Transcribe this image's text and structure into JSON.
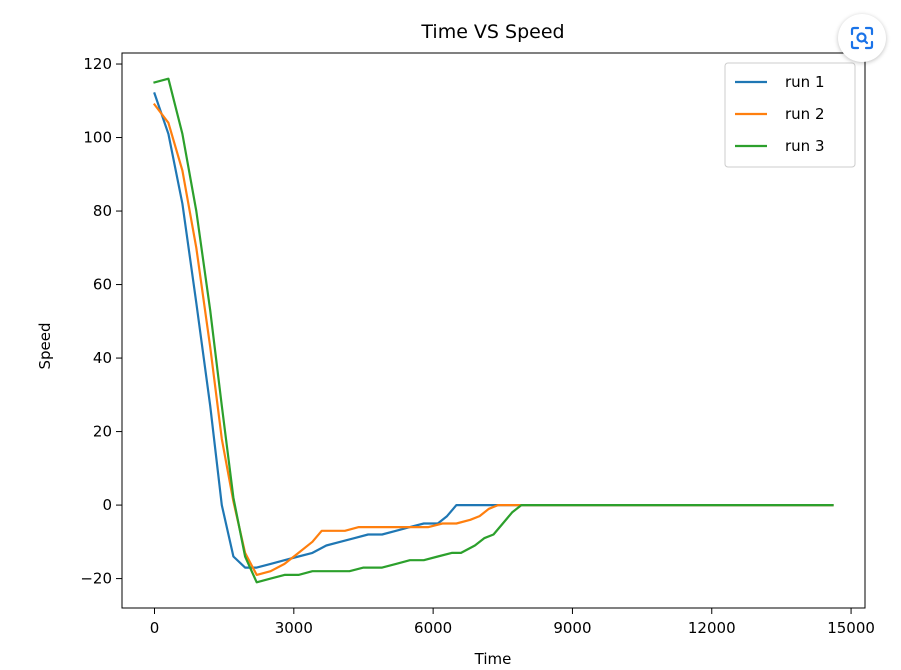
{
  "overlay": {
    "lens_icon": "visual-search-icon"
  },
  "chart_data": {
    "type": "line",
    "title": "Time VS Speed",
    "xlabel": "Time",
    "ylabel": "Speed",
    "xlim": [
      -700,
      15300
    ],
    "ylim": [
      -28,
      123
    ],
    "xticks": [
      0,
      3000,
      6000,
      9000,
      12000,
      15000
    ],
    "xtick_labels": [
      "0",
      "3000",
      "6000",
      "9000",
      "12000",
      "15000"
    ],
    "yticks": [
      -20,
      0,
      20,
      40,
      60,
      80,
      100,
      120
    ],
    "ytick_labels": [
      "−20",
      "0",
      "20",
      "40",
      "60",
      "80",
      "100",
      "120"
    ],
    "grid": false,
    "legend_position": "top-right",
    "series": [
      {
        "name": "run 1",
        "color": "#1f77b4",
        "points": [
          [
            0,
            112
          ],
          [
            300,
            101
          ],
          [
            600,
            82
          ],
          [
            900,
            55
          ],
          [
            1200,
            27
          ],
          [
            1450,
            0
          ],
          [
            1700,
            -14
          ],
          [
            1950,
            -17
          ],
          [
            2200,
            -17
          ],
          [
            2500,
            -16
          ],
          [
            2800,
            -15
          ],
          [
            3100,
            -14
          ],
          [
            3400,
            -13
          ],
          [
            3700,
            -11
          ],
          [
            4000,
            -10
          ],
          [
            4300,
            -9
          ],
          [
            4600,
            -8
          ],
          [
            4900,
            -8
          ],
          [
            5200,
            -7
          ],
          [
            5500,
            -6
          ],
          [
            5800,
            -5
          ],
          [
            6100,
            -5
          ],
          [
            6300,
            -3
          ],
          [
            6500,
            0
          ],
          [
            7000,
            0
          ],
          [
            8000,
            0
          ],
          [
            14600,
            0
          ]
        ]
      },
      {
        "name": "run 2",
        "color": "#ff7f0e",
        "points": [
          [
            0,
            109
          ],
          [
            300,
            104
          ],
          [
            600,
            91
          ],
          [
            900,
            70
          ],
          [
            1200,
            43
          ],
          [
            1450,
            18
          ],
          [
            1700,
            1
          ],
          [
            1950,
            -13
          ],
          [
            2200,
            -19
          ],
          [
            2500,
            -18
          ],
          [
            2800,
            -16
          ],
          [
            3100,
            -13
          ],
          [
            3400,
            -10
          ],
          [
            3600,
            -7
          ],
          [
            3800,
            -7
          ],
          [
            4100,
            -7
          ],
          [
            4400,
            -6
          ],
          [
            4700,
            -6
          ],
          [
            5000,
            -6
          ],
          [
            5300,
            -6
          ],
          [
            5600,
            -6
          ],
          [
            5900,
            -6
          ],
          [
            6200,
            -5
          ],
          [
            6500,
            -5
          ],
          [
            6800,
            -4
          ],
          [
            7000,
            -3
          ],
          [
            7200,
            -1
          ],
          [
            7400,
            0
          ],
          [
            8000,
            0
          ],
          [
            14600,
            0
          ]
        ]
      },
      {
        "name": "run 3",
        "color": "#2ca02c",
        "points": [
          [
            0,
            115
          ],
          [
            300,
            116
          ],
          [
            600,
            101
          ],
          [
            900,
            80
          ],
          [
            1200,
            53
          ],
          [
            1450,
            27
          ],
          [
            1700,
            2
          ],
          [
            1950,
            -14
          ],
          [
            2200,
            -21
          ],
          [
            2500,
            -20
          ],
          [
            2800,
            -19
          ],
          [
            3100,
            -19
          ],
          [
            3400,
            -18
          ],
          [
            3800,
            -18
          ],
          [
            4200,
            -18
          ],
          [
            4500,
            -17
          ],
          [
            4900,
            -17
          ],
          [
            5200,
            -16
          ],
          [
            5500,
            -15
          ],
          [
            5800,
            -15
          ],
          [
            6100,
            -14
          ],
          [
            6400,
            -13
          ],
          [
            6600,
            -13
          ],
          [
            6900,
            -11
          ],
          [
            7100,
            -9
          ],
          [
            7300,
            -8
          ],
          [
            7500,
            -5
          ],
          [
            7700,
            -2
          ],
          [
            7900,
            0
          ],
          [
            8500,
            0
          ],
          [
            14600,
            0
          ]
        ]
      }
    ]
  }
}
